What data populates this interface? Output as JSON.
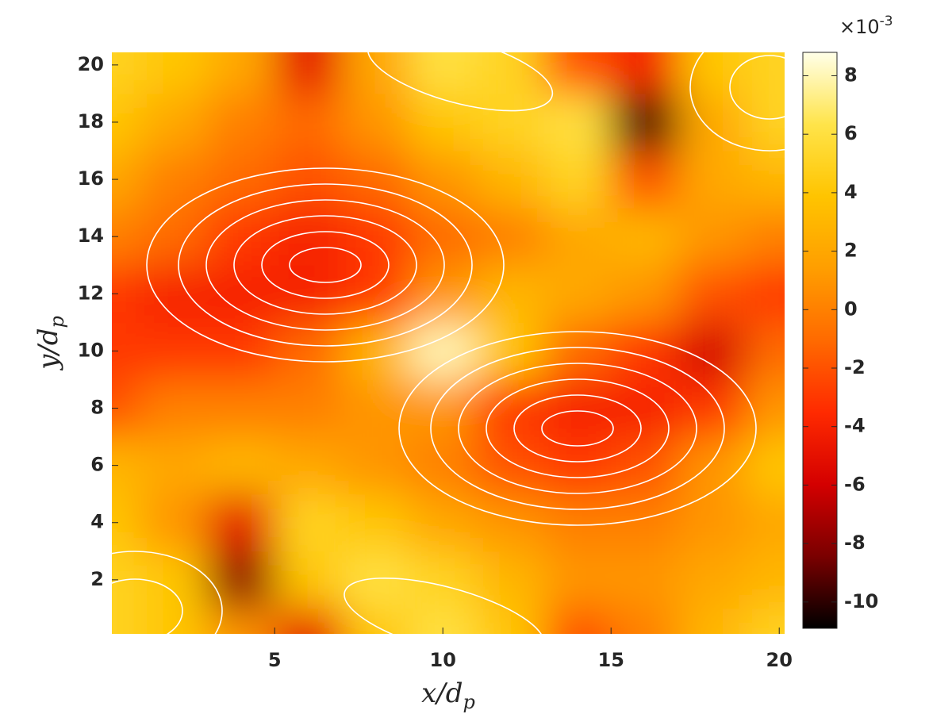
{
  "chart_data": {
    "type": "heatmap",
    "xlabel": {
      "main": "x/d",
      "sub": "p"
    },
    "ylabel": {
      "main": "y/d",
      "sub": "p"
    },
    "x": [
      0,
      2,
      4,
      6,
      8,
      10,
      12,
      14,
      16,
      18,
      20
    ],
    "y": [
      0,
      2,
      4,
      6,
      8,
      10,
      12,
      14,
      16,
      18,
      20
    ],
    "z": [
      [
        5,
        4,
        1,
        -5,
        4,
        6,
        4,
        -2,
        0,
        3,
        5
      ],
      [
        5,
        4,
        -8,
        4,
        6,
        5,
        3,
        1,
        1,
        2,
        3
      ],
      [
        4,
        1,
        -5,
        5,
        4,
        2,
        1,
        0,
        0,
        1,
        2
      ],
      [
        3,
        2,
        3,
        2,
        1,
        0,
        -2,
        -3,
        -2,
        1,
        4
      ],
      [
        -2,
        0,
        0,
        0,
        1,
        1,
        -3,
        -4,
        -4,
        -3,
        1
      ],
      [
        -3,
        -3,
        -3,
        -1,
        3,
        8,
        4,
        -1,
        -3,
        -6,
        -1
      ],
      [
        -3,
        -4,
        -4,
        -4,
        -3,
        1,
        3,
        2,
        1,
        -2,
        -3
      ],
      [
        0,
        -1,
        -3,
        -4,
        -3,
        -1,
        0,
        2,
        3,
        1,
        0
      ],
      [
        2,
        0,
        -1,
        -2,
        -1,
        1,
        3,
        5,
        -2,
        2,
        3
      ],
      [
        4,
        2,
        0,
        -1,
        1,
        4,
        5,
        6,
        -10,
        2,
        5
      ],
      [
        5,
        4,
        2,
        -5,
        2,
        6,
        5,
        -2,
        -4,
        4,
        5
      ]
    ],
    "xlim": [
      0.16,
      20.16
    ],
    "ylim": [
      0.11,
      20.44
    ],
    "xticks": [
      5,
      10,
      15,
      20
    ],
    "yticks": [
      2,
      4,
      6,
      8,
      10,
      12,
      14,
      16,
      18,
      20
    ],
    "clim": [
      -10.9,
      8.8
    ],
    "cticks": [
      -10,
      -8,
      -6,
      -4,
      -2,
      0,
      2,
      4,
      6,
      8
    ],
    "colorbar_multiplier": "×10",
    "colorbar_exponent": "-3",
    "colormap": [
      "#000000",
      "#7a0000",
      "#d40000",
      "#ff2a00",
      "#ff6a00",
      "#ff9e00",
      "#ffc400",
      "#ffe44a",
      "#ffffe8"
    ],
    "contour_color": "#ffffff"
  }
}
